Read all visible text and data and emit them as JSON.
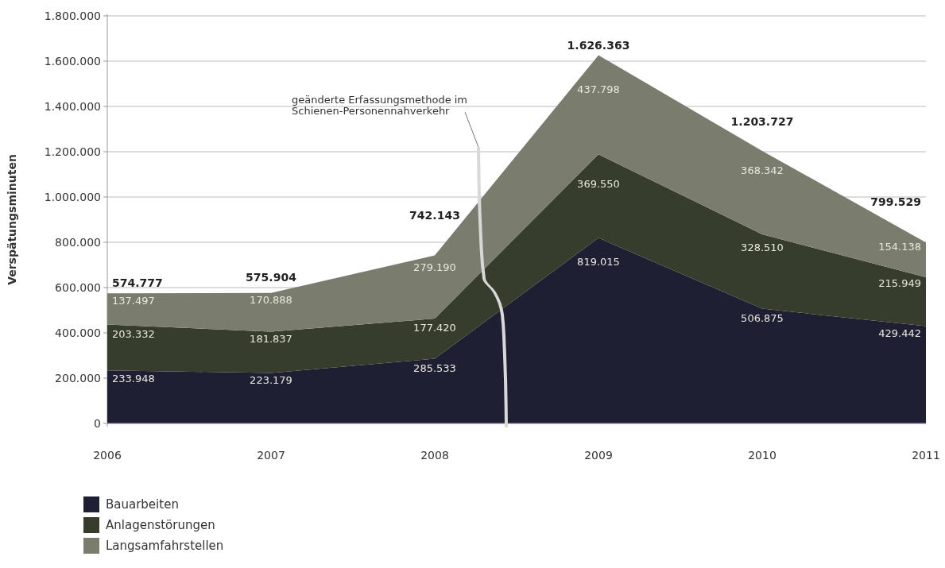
{
  "chart_data": {
    "type": "area",
    "stacked": true,
    "ylabel": "Verspätungsminuten",
    "categories": [
      "2006",
      "2007",
      "2008",
      "2009",
      "2010",
      "2011"
    ],
    "series": [
      {
        "name": "Bauarbeiten",
        "color": "#1f1f33",
        "values": [
          233948,
          223179,
          285533,
          819015,
          506875,
          429442
        ],
        "value_labels": [
          "233.948",
          "223.179",
          "285.533",
          "819.015",
          "506.875",
          "429.442"
        ]
      },
      {
        "name": "Anlagenstörungen",
        "color": "#363d2c",
        "values": [
          203332,
          181837,
          177420,
          369550,
          328510,
          215949
        ],
        "value_labels": [
          "203.332",
          "181.837",
          "177.420",
          "369.550",
          "328.510",
          "215.949"
        ]
      },
      {
        "name": "Langsamfahrstellen",
        "color": "#7a7d6e",
        "values": [
          137497,
          170888,
          279190,
          437798,
          368342,
          154138
        ],
        "value_labels": [
          "137.497",
          "170.888",
          "279.190",
          "437.798",
          "368.342",
          "154.138"
        ]
      }
    ],
    "totals": [
      "574.777",
      "575.904",
      "742.143",
      "1.626.363",
      "1.203.727",
      "799.529"
    ],
    "ylim": [
      0,
      1800000
    ],
    "yticks": [
      {
        "value": 0,
        "label": "0"
      },
      {
        "value": 200000,
        "label": "200.000"
      },
      {
        "value": 400000,
        "label": "400.000"
      },
      {
        "value": 600000,
        "label": "600.000"
      },
      {
        "value": 800000,
        "label": "800.000"
      },
      {
        "value": 1000000,
        "label": "1.000.000"
      },
      {
        "value": 1200000,
        "label": "1.200.000"
      },
      {
        "value": 1400000,
        "label": "1.400.000"
      },
      {
        "value": 1600000,
        "label": "1.600.000"
      },
      {
        "value": 1800000,
        "label": "1.800.000"
      }
    ],
    "grid": "y",
    "legend": "bottom left",
    "annotations": [
      "geänderte Erfassungsmethode im\nSchienen-Personennahverkehr"
    ]
  }
}
